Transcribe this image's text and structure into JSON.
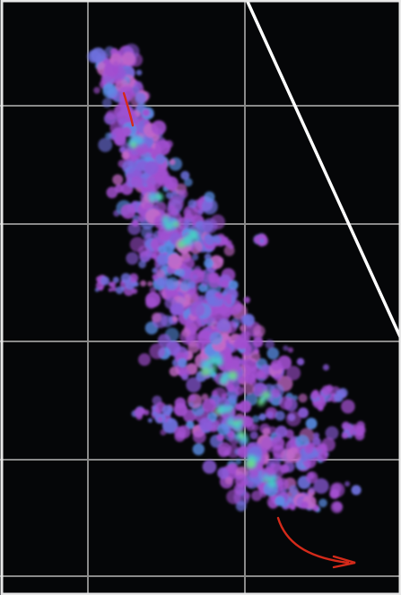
{
  "viewer": {
    "background_color": "#050608",
    "border_color": "#e8e8e8",
    "grid_color": "#8a8a8a",
    "reference_line_color": "#ffffff",
    "trajectory_color": "#d42a1a"
  },
  "cloud": {
    "palette": [
      "#a24fd0",
      "#8a5ad8",
      "#6f72e0",
      "#5a8ee6",
      "#4fb2e3",
      "#46cfc6",
      "#6bd98a",
      "#c469c8"
    ]
  }
}
